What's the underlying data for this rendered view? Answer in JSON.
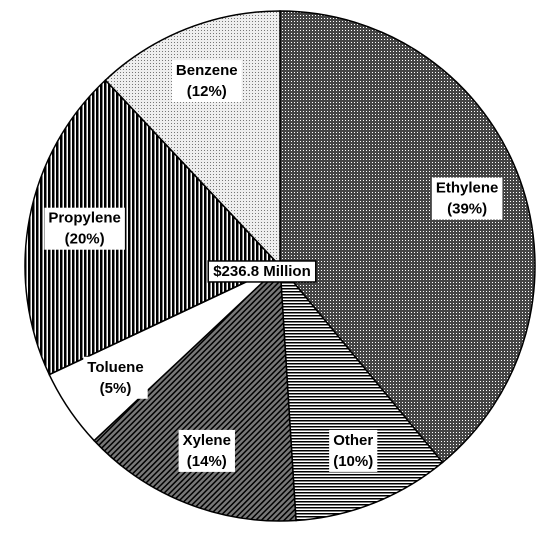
{
  "chart_data": {
    "type": "pie",
    "center_label": "$236.8 Million",
    "categories": [
      "Ethylene",
      "Other",
      "Xylene",
      "Toluene",
      "Propylene",
      "Benzene"
    ],
    "values": [
      39,
      10,
      14,
      5,
      20,
      12
    ],
    "value_labels": [
      "(39%)",
      "(10%)",
      "(14%)",
      "(5%)",
      "(20%)",
      "(12%)"
    ]
  }
}
